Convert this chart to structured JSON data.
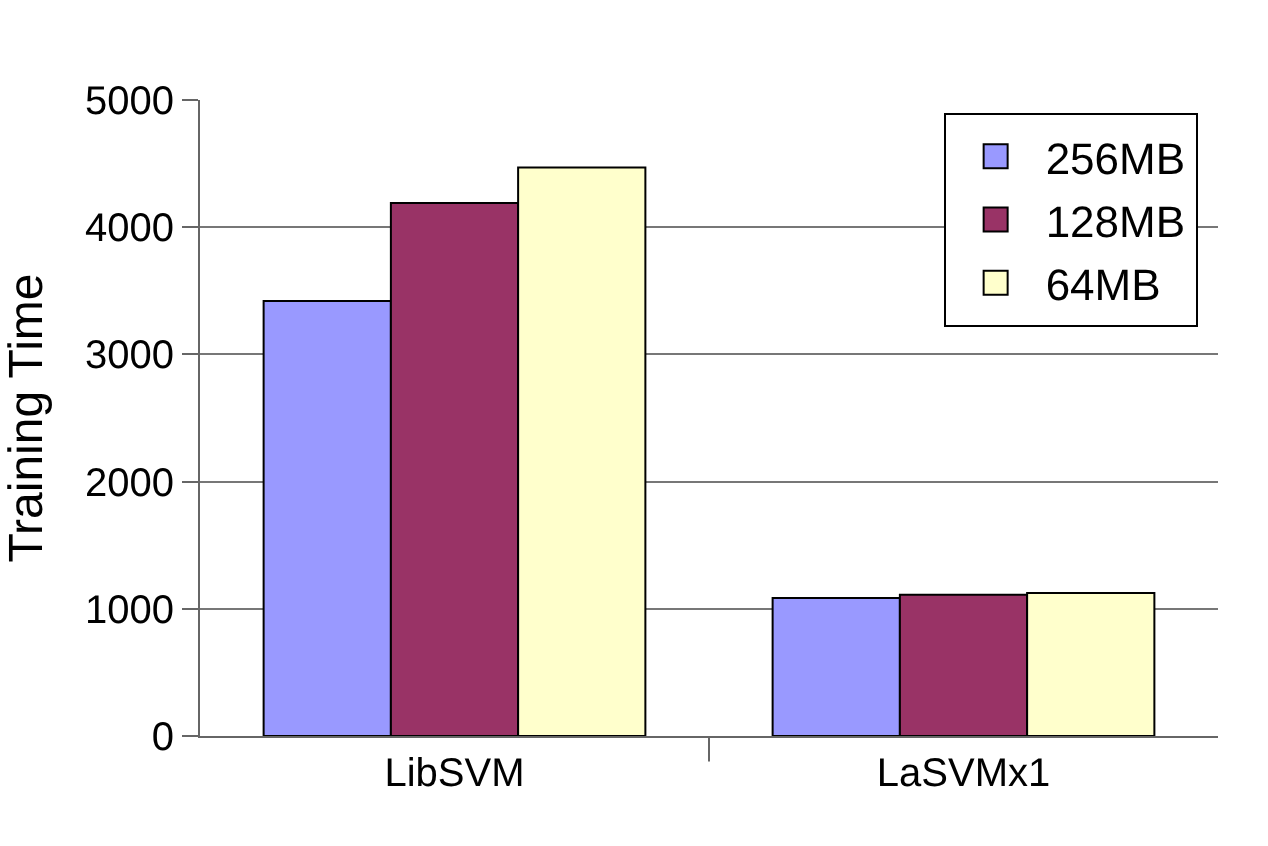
{
  "chart_data": {
    "type": "bar",
    "ylabel": "Training Time",
    "categories": [
      "LibSVM",
      "LaSVMx1"
    ],
    "series": [
      {
        "name": "256MB",
        "color": "#9999ff",
        "values": [
          3420,
          1085
        ]
      },
      {
        "name": "128MB",
        "color": "#993366",
        "values": [
          4190,
          1110
        ]
      },
      {
        "name": "64MB",
        "color": "#ffffcc",
        "values": [
          4470,
          1125
        ]
      }
    ],
    "ylim": [
      0,
      5000
    ],
    "yticks": [
      0,
      1000,
      2000,
      3000,
      4000,
      5000
    ],
    "grid": "y",
    "legend": "top right"
  }
}
